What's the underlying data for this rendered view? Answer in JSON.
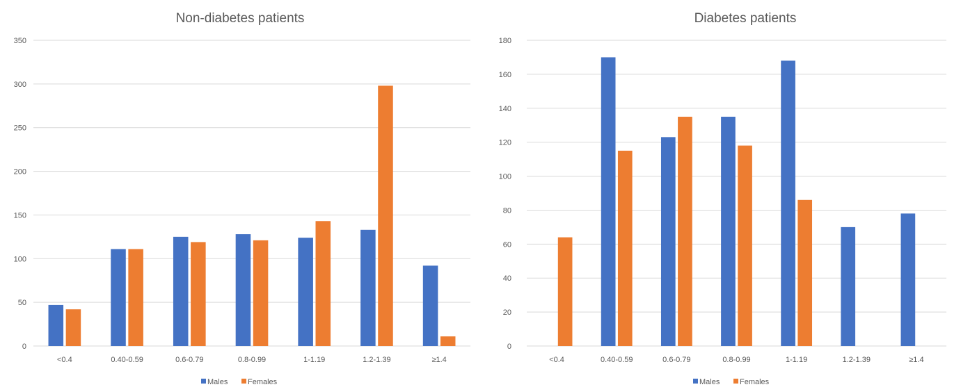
{
  "colors": {
    "males": "#4472C4",
    "females": "#ED7D31",
    "grid": "#D9D9D9",
    "text": "#595959"
  },
  "chart_data": [
    {
      "type": "bar",
      "title": "Non-diabetes patients",
      "categories": [
        "<0.4",
        "0.40-0.59",
        "0.6-0.79",
        "0.8-0.99",
        "1-1.19",
        "1.2-1.39",
        "≥1.4"
      ],
      "series": [
        {
          "name": "Males",
          "values": [
            47,
            111,
            125,
            128,
            124,
            133,
            92
          ]
        },
        {
          "name": "Females",
          "values": [
            42,
            111,
            119,
            121,
            143,
            298,
            11
          ]
        }
      ],
      "ylim": [
        0,
        350
      ],
      "yticks": [
        "0",
        "50",
        "100",
        "150",
        "200",
        "250",
        "300",
        "350"
      ],
      "grid": true,
      "legend": "bottom"
    },
    {
      "type": "bar",
      "title": "Diabetes patients",
      "categories": [
        "<0.4",
        "0.40-0.59",
        "0.6-0.79",
        "0.8-0.99",
        "1-1.19",
        "1.2-1.39",
        "≥1.4"
      ],
      "series": [
        {
          "name": "Males",
          "values": [
            0,
            170,
            123,
            135,
            168,
            70,
            78
          ]
        },
        {
          "name": "Females",
          "values": [
            64,
            115,
            135,
            118,
            86,
            0,
            0
          ]
        }
      ],
      "ylim": [
        0,
        180
      ],
      "yticks": [
        "0",
        "20",
        "40",
        "60",
        "80",
        "100",
        "120",
        "140",
        "160",
        "180"
      ],
      "grid": true,
      "legend": "bottom"
    }
  ]
}
